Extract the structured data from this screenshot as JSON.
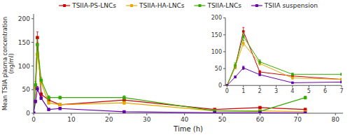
{
  "chart_data": [
    {
      "type": "line",
      "xlabel": "Time (h)",
      "ylabel": "Mean TSIIA plasma concentration\n(ng/ml)",
      "x": [
        0,
        0.5,
        1,
        2,
        4,
        7,
        24,
        48,
        60,
        72
      ],
      "xlim": [
        0,
        82
      ],
      "ylim": [
        0,
        210
      ],
      "xticks": [
        0,
        10,
        20,
        30,
        40,
        50,
        60,
        70,
        80
      ],
      "yticks": [
        0,
        50,
        100,
        150,
        200
      ],
      "legend": "top",
      "series": [
        {
          "name": "TSIIA-PS-LNCs",
          "color": "#cc0000",
          "marker": "square",
          "values": [
            0,
            55,
            160,
            40,
            28,
            18,
            28,
            8,
            12,
            8
          ],
          "errors": [
            0,
            5,
            12,
            4,
            3,
            2,
            3,
            1,
            2,
            1
          ]
        },
        {
          "name": "TSIIA-HA-LNCs",
          "color": "#e6a800",
          "marker": "square",
          "values": [
            0,
            55,
            125,
            65,
            22,
            18,
            22,
            5,
            5,
            3
          ],
          "errors": [
            0,
            5,
            8,
            5,
            3,
            2,
            3,
            1,
            1,
            1
          ]
        },
        {
          "name": "TSIIA-LNCs",
          "color": "#33aa00",
          "marker": "square",
          "values": [
            0,
            60,
            145,
            70,
            33,
            33,
            33,
            5,
            4,
            33
          ],
          "errors": [
            0,
            7,
            12,
            6,
            4,
            3,
            4,
            1,
            1,
            3
          ]
        },
        {
          "name": "TSIIA suspension",
          "color": "#6600aa",
          "marker": "square",
          "values": [
            0,
            25,
            52,
            32,
            8,
            10,
            3,
            1,
            1,
            0.5
          ],
          "errors": [
            0,
            3,
            5,
            3,
            2,
            2,
            1,
            0.3,
            0.3,
            0.2
          ]
        }
      ]
    },
    {
      "type": "line",
      "x": [
        0,
        0.5,
        1,
        2,
        4,
        7
      ],
      "xlim": [
        -0.1,
        7
      ],
      "ylim": [
        0,
        200
      ],
      "xticks": [
        0,
        1,
        2,
        3,
        4,
        5,
        6,
        7
      ],
      "yticks": [
        0,
        50,
        100,
        150,
        200
      ],
      "series": [
        {
          "color": "#cc0000",
          "marker": "square",
          "values": [
            0,
            55,
            160,
            40,
            28,
            18
          ],
          "errors": [
            0,
            5,
            12,
            4,
            3,
            2
          ]
        },
        {
          "color": "#e6a800",
          "marker": "square",
          "values": [
            0,
            55,
            125,
            65,
            22,
            18
          ],
          "errors": [
            0,
            5,
            8,
            5,
            3,
            2
          ]
        },
        {
          "color": "#33aa00",
          "marker": "square",
          "values": [
            0,
            60,
            145,
            70,
            33,
            33
          ],
          "errors": [
            0,
            7,
            12,
            6,
            4,
            3
          ]
        },
        {
          "color": "#6600aa",
          "marker": "square",
          "values": [
            0,
            25,
            52,
            32,
            8,
            10
          ],
          "errors": [
            0,
            3,
            5,
            3,
            2,
            2
          ]
        }
      ]
    }
  ]
}
